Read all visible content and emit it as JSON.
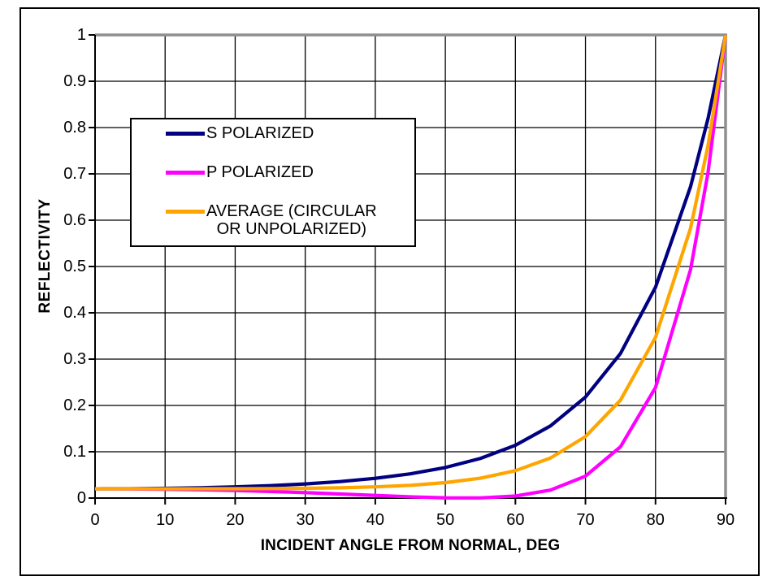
{
  "chart_data": {
    "type": "line",
    "title": "",
    "xlabel": "INCIDENT ANGLE FROM NORMAL, DEG",
    "ylabel": "REFLECTIVITY",
    "xlim": [
      0,
      90
    ],
    "ylim": [
      0,
      1
    ],
    "grid": true,
    "legend_position": "upper-left-inside",
    "x_ticks": [
      0,
      10,
      20,
      30,
      40,
      50,
      60,
      70,
      80,
      90
    ],
    "x_tick_labels": [
      "0",
      "10",
      "20",
      "30",
      "40",
      "50",
      "60",
      "70",
      "80",
      "90"
    ],
    "y_ticks": [
      0,
      0.1,
      0.2,
      0.3,
      0.4,
      0.5,
      0.6,
      0.7,
      0.8,
      0.9,
      1
    ],
    "y_tick_labels": [
      "0",
      "0.1",
      "0.2",
      "0.3",
      "0.4",
      "0.5",
      "0.6",
      "0.7",
      "0.8",
      "0.9",
      "1"
    ],
    "gridline_color": "#000000",
    "axis_color": "#000000",
    "plot_border_color": "#8F8F8F",
    "x": [
      0,
      5,
      10,
      15,
      20,
      25,
      30,
      35,
      40,
      45,
      50,
      55,
      60,
      65,
      70,
      75,
      80,
      85,
      87.5,
      90
    ],
    "series": [
      {
        "id": "s-polarized",
        "name": "S POLARIZED",
        "color": "#000080",
        "values": [
          0.0201,
          0.0203,
          0.021,
          0.0222,
          0.0241,
          0.0268,
          0.0305,
          0.0356,
          0.0426,
          0.0523,
          0.066,
          0.0855,
          0.1139,
          0.1557,
          0.218,
          0.3122,
          0.4552,
          0.6724,
          0.8196,
          1.0
        ]
      },
      {
        "id": "p-polarized",
        "name": "P POLARIZED",
        "color": "#FF00FF",
        "values": [
          0.0201,
          0.0198,
          0.0191,
          0.018,
          0.0164,
          0.0143,
          0.0117,
          0.0088,
          0.0057,
          0.0027,
          0.0005,
          0.0003,
          0.0044,
          0.0172,
          0.0473,
          0.1107,
          0.2386,
          0.4931,
          0.703,
          1.0
        ]
      },
      {
        "id": "average",
        "name": "AVERAGE (CIRCULAR OR UNPOLARIZED)",
        "color": "#FFA500",
        "values": [
          0.0201,
          0.0201,
          0.0201,
          0.0201,
          0.0202,
          0.0205,
          0.0211,
          0.0222,
          0.0242,
          0.0275,
          0.0333,
          0.0429,
          0.0591,
          0.0864,
          0.1327,
          0.2114,
          0.3469,
          0.5827,
          0.7613,
          1.0
        ]
      }
    ]
  },
  "legend": {
    "items": [
      {
        "id": "s-polarized",
        "color": "#000080",
        "lines": [
          "S POLARIZED"
        ]
      },
      {
        "id": "p-polarized",
        "color": "#FF00FF",
        "lines": [
          "P POLARIZED"
        ]
      },
      {
        "id": "average",
        "color": "#FFA500",
        "lines": [
          "AVERAGE (CIRCULAR",
          "OR UNPOLARIZED)"
        ]
      }
    ]
  }
}
